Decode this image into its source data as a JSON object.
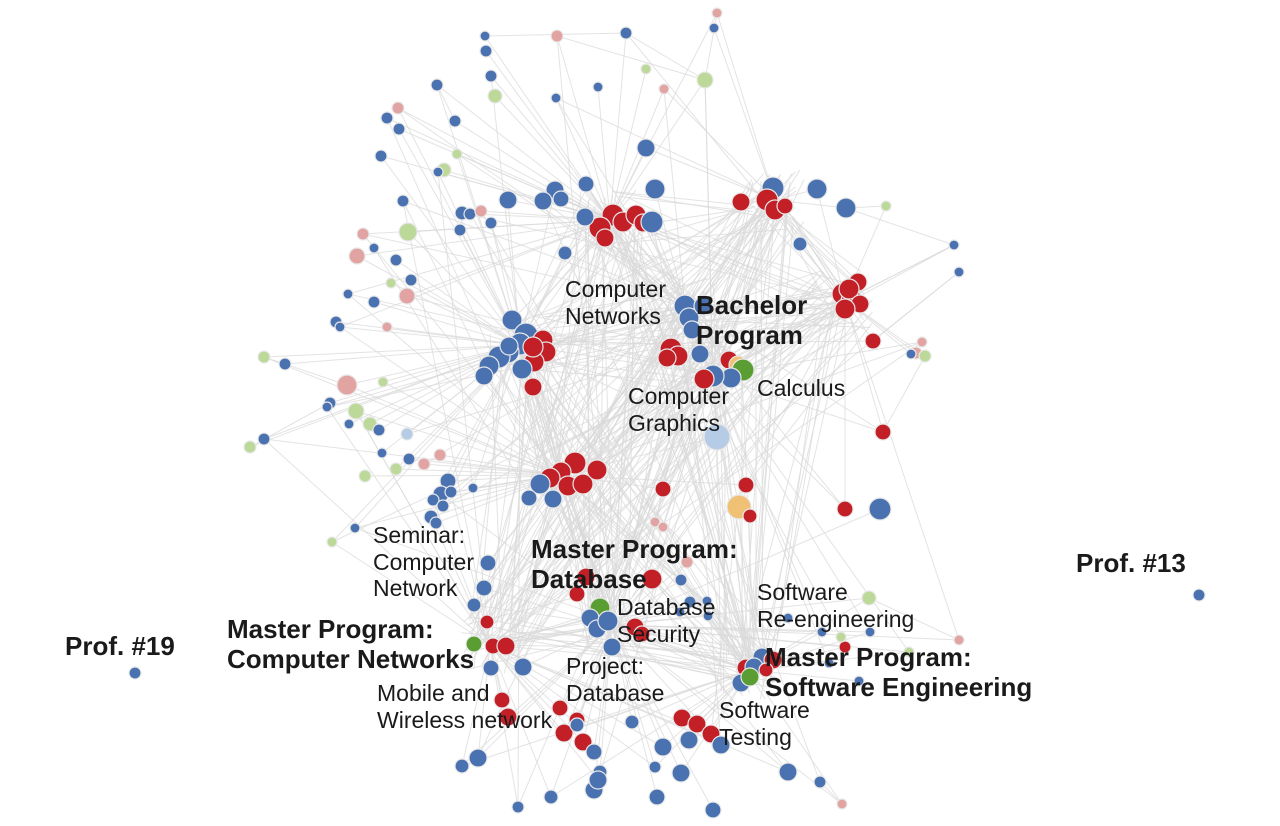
{
  "colors": {
    "edge": "#d9d9d9",
    "node_stroke": "#e8e8e8",
    "blue": "#4a72b0",
    "red": "#c21f27",
    "light_green": "#bcd99a",
    "pink": "#e2a3a3",
    "green": "#5a9e33",
    "orange": "#f0c074",
    "light_blue": "#b5cbe6"
  },
  "labels": {
    "bachelor_program": [
      "Bachelor",
      "Program"
    ],
    "computer_networks": [
      "Computer",
      "Networks"
    ],
    "calculus": [
      "Calculus"
    ],
    "computer_graphics": [
      "Computer",
      "Graphics"
    ],
    "seminar": [
      "Seminar:",
      "Computer",
      "Network"
    ],
    "master_database": [
      "Master Program:",
      "Database"
    ],
    "database_security": [
      "Database",
      "Security"
    ],
    "software_reengineering": [
      "Software",
      "Re-engineering"
    ],
    "master_computer_networks": [
      "Master Program:",
      "Computer Networks"
    ],
    "project_database": [
      "Project:",
      "Database"
    ],
    "master_software_engineering": [
      "Master Program:",
      "Software Engineering"
    ],
    "mobile_wireless": [
      "Mobile and",
      "Wireless network"
    ],
    "software_testing": [
      "Software",
      "Testing"
    ],
    "prof_13": "Prof. #13",
    "prof_19": "Prof. #19"
  }
}
